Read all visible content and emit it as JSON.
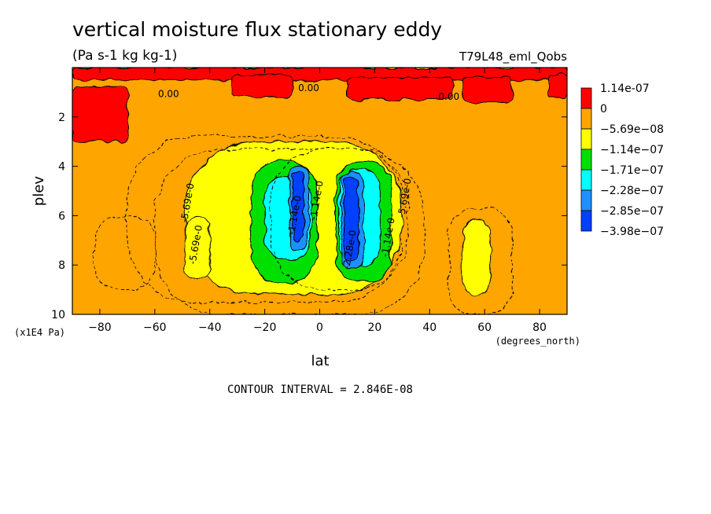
{
  "chart_data": {
    "type": "heatmap",
    "title": "vertical moisture flux stationary eddy",
    "units": "(Pa s-1 kg kg-1)",
    "dataset": "T79L48_eml_Qobs",
    "xlabel": "lat",
    "x_units": "(degrees_north)",
    "ylabel": "plev",
    "y_units": "(x1E4 Pa)",
    "xlim": [
      -90,
      90
    ],
    "ylim": [
      10,
      0
    ],
    "x_ticks": [
      -80,
      -60,
      -40,
      -20,
      0,
      20,
      40,
      60,
      80
    ],
    "y_ticks": [
      2,
      4,
      6,
      8,
      10
    ],
    "contour_interval_text": "CONTOUR INTERVAL = 2.846E-08",
    "legend": {
      "placement": "right",
      "levels": [
        {
          "label": "1.14e-07",
          "color": "#ff0000"
        },
        {
          "label": "0",
          "color": "#ffa500"
        },
        {
          "label": "−5.69e−08",
          "color": "#ffff00"
        },
        {
          "label": "−1.14e−07",
          "color": "#00e000"
        },
        {
          "label": "−1.71e−07",
          "color": "#00ffff"
        },
        {
          "label": "−2.28e−07",
          "color": "#1e90ff"
        },
        {
          "label": "−2.85e−07",
          "color": "#0040ff"
        },
        {
          "label": "−3.98e−07",
          "color": "#0040ff"
        }
      ]
    },
    "colors": {
      "positive": "#ff0000",
      "background": "#ffa500",
      "level1": "#ffff00",
      "level2": "#00e000",
      "level3": "#00ffff",
      "level4": "#1e90ff",
      "level5": "#0040ff"
    },
    "regions": [
      {
        "level": 0,
        "lat": [
          -90,
          90
        ],
        "plev": [
          0.5,
          0
        ]
      },
      {
        "level": 0,
        "lat": [
          -90,
          -70
        ],
        "plev": [
          3.0,
          0.8
        ]
      },
      {
        "level": 0,
        "lat": [
          -32,
          -10
        ],
        "plev": [
          1.2,
          0.3
        ]
      },
      {
        "level": 0,
        "lat": [
          10,
          48
        ],
        "plev": [
          1.3,
          0.4
        ]
      },
      {
        "level": 0,
        "lat": [
          52,
          70
        ],
        "plev": [
          1.4,
          0.4
        ]
      },
      {
        "level": 0,
        "lat": [
          83,
          90
        ],
        "plev": [
          1.2,
          0.3
        ]
      },
      {
        "level": 1,
        "lat": [
          -49,
          30
        ],
        "plev": [
          9.2,
          3.0
        ]
      },
      {
        "level": 1,
        "lat": [
          -49,
          -40
        ],
        "plev": [
          8.6,
          6.0
        ]
      },
      {
        "level": 1,
        "lat": [
          52,
          62
        ],
        "plev": [
          9.2,
          6.2
        ]
      },
      {
        "level": 2,
        "lat": [
          -25,
          -1
        ],
        "plev": [
          8.7,
          3.8
        ]
      },
      {
        "level": 2,
        "lat": [
          6,
          26
        ],
        "plev": [
          8.7,
          3.8
        ]
      },
      {
        "level": 3,
        "lat": [
          -20,
          -3
        ],
        "plev": [
          7.8,
          4.4
        ]
      },
      {
        "level": 3,
        "lat": [
          7,
          22
        ],
        "plev": [
          8.0,
          4.1
        ]
      },
      {
        "level": 4,
        "lat": [
          -11,
          -4
        ],
        "plev": [
          7.4,
          4.0
        ]
      },
      {
        "level": 4,
        "lat": [
          8,
          16
        ],
        "plev": [
          8.1,
          4.2
        ]
      },
      {
        "level": 5,
        "lat": [
          -10,
          -6
        ],
        "plev": [
          7.0,
          4.2
        ]
      },
      {
        "level": 5,
        "lat": [
          9,
          14
        ],
        "plev": [
          7.8,
          4.4
        ]
      }
    ],
    "contour_labels": [
      {
        "text": "0.00",
        "lat": -55,
        "plev": 1.2,
        "rotate": 0
      },
      {
        "text": "0.00",
        "lat": -4,
        "plev": 0.95,
        "rotate": 0
      },
      {
        "text": "0.00",
        "lat": 47,
        "plev": 1.3,
        "rotate": 0
      },
      {
        "text": "-5.69e-0",
        "lat": -44,
        "plev": 7.2,
        "rotate": -80
      },
      {
        "text": "-1.14e-0",
        "lat": -8,
        "plev": 6.0,
        "rotate": -80
      },
      {
        "text": "-1.14e-0",
        "lat": 26,
        "plev": 6.9,
        "rotate": -80
      },
      {
        "text": "-5.69e-0",
        "lat": 32,
        "plev": 5.3,
        "rotate": -80
      },
      {
        "text": "-1.14e-0",
        "lat": 0,
        "plev": 5.4,
        "rotate": -80
      },
      {
        "text": "-2.28e-0",
        "lat": 12,
        "plev": 7.4,
        "rotate": -80
      },
      {
        "text": "-5.69e-0",
        "lat": -47,
        "plev": 5.5,
        "rotate": -80
      }
    ],
    "dashed_contours": [
      {
        "lat": [
          -70,
          30
        ],
        "plev": [
          9.5,
          2.8
        ]
      },
      {
        "lat": [
          -60,
          38
        ],
        "plev": [
          10.0,
          3.3
        ]
      },
      {
        "lat": [
          47,
          70
        ],
        "plev": [
          10.0,
          5.7
        ]
      },
      {
        "lat": [
          -18,
          32
        ],
        "plev": [
          9.0,
          3.3
        ]
      },
      {
        "lat": [
          -82,
          -60
        ],
        "plev": [
          9.0,
          6.0
        ]
      }
    ]
  }
}
